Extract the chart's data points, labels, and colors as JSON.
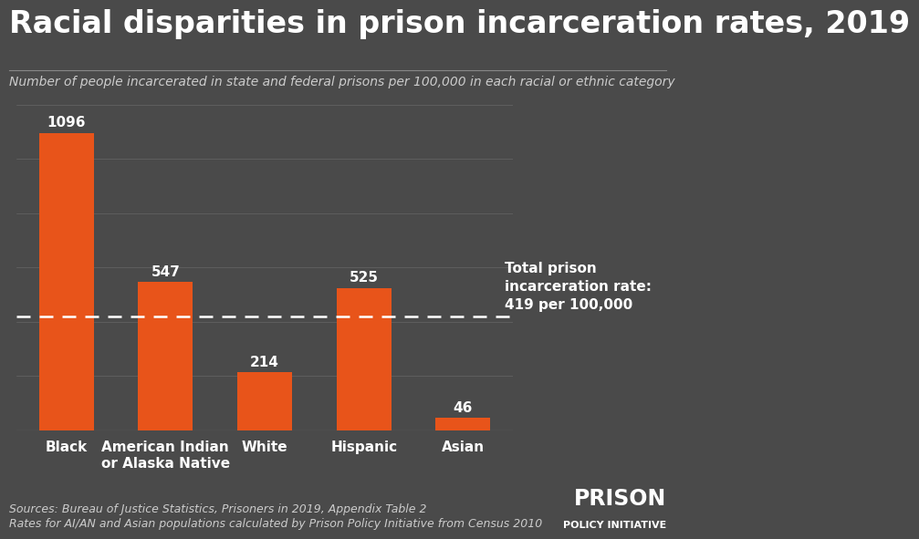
{
  "title": "Racial disparities in prison incarceration rates, 2019",
  "subtitle": "Number of people incarcerated in state and federal prisons per 100,000 in each racial or ethnic category",
  "categories": [
    "Black",
    "American Indian\nor Alaska Native",
    "White",
    "Hispanic",
    "Asian"
  ],
  "values": [
    1096,
    547,
    214,
    525,
    46
  ],
  "bar_color": "#e8541a",
  "background_color": "#4a4a4a",
  "text_color": "#ffffff",
  "subtitle_color": "#cccccc",
  "gridline_color": "#666666",
  "dashed_line_value": 419,
  "dashed_line_label": "Total prison\nincarceration rate:\n419 per 100,000",
  "ylim": [
    0,
    1250
  ],
  "source_text_line1": "Sources: Bureau of Justice Statistics, Prisoners in 2019, Appendix Table 2",
  "source_text_line2": "Rates for AI/AN and Asian populations calculated by Prison Policy Initiative from Census 2010",
  "logo_line1": "PRISON",
  "logo_line2": "POLICY INITIATIVE",
  "title_fontsize": 24,
  "subtitle_fontsize": 10,
  "bar_label_fontsize": 11,
  "axis_label_fontsize": 11,
  "dashed_line_label_fontsize": 11,
  "source_fontsize": 9,
  "logo_fontsize1": 17,
  "logo_fontsize2": 8
}
